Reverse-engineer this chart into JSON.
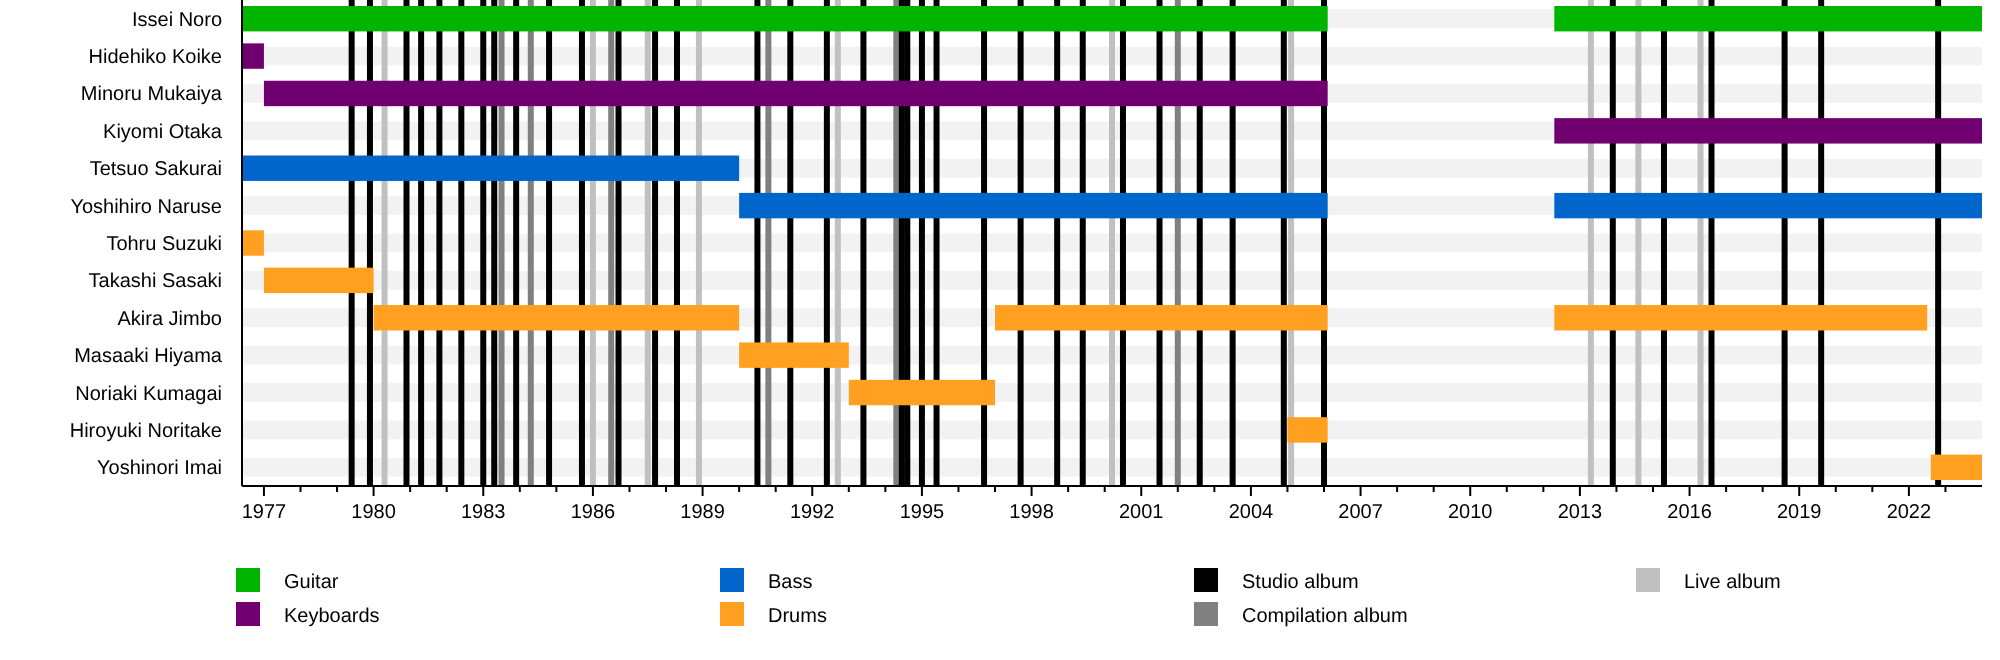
{
  "chart_data": {
    "type": "bar",
    "orientation": "horizontal",
    "legend": "bottom",
    "categories": [
      "Issei Noro",
      "Hidehiko Koike",
      "Minoru Mukaiya",
      "Kiyomi Otaka",
      "Tetsuo Sakurai",
      "Yoshihiro Naruse",
      "Tohru Suzuki",
      "Takashi Sasaki",
      "Akira Jimbo",
      "Masaaki Hiyama",
      "Noriaki Kumagai",
      "Hiroyuki Noritake",
      "Yoshinori Imai"
    ],
    "xlim": [
      1976.4,
      2024.0
    ],
    "xticks": [
      1977,
      {
        "value": 1978,
        "label": null
      },
      {
        "value": 1979,
        "label": null
      },
      1980,
      {
        "value": 1981,
        "label": null
      },
      {
        "value": 1982,
        "label": null
      },
      1983,
      {
        "value": 1984,
        "label": null
      },
      {
        "value": 1985,
        "label": null
      },
      1986,
      {
        "value": 1987,
        "label": null
      },
      {
        "value": 1988,
        "label": null
      },
      1989,
      {
        "value": 1990,
        "label": null
      },
      {
        "value": 1991,
        "label": null
      },
      1992,
      {
        "value": 1993,
        "label": null
      },
      {
        "value": 1994,
        "label": null
      },
      1995,
      {
        "value": 1996,
        "label": null
      },
      {
        "value": 1997,
        "label": null
      },
      1998,
      {
        "value": 1999,
        "label": null
      },
      {
        "value": 2000,
        "label": null
      },
      2001,
      {
        "value": 2002,
        "label": null
      },
      {
        "value": 2003,
        "label": null
      },
      2004,
      {
        "value": 2005,
        "label": null
      },
      {
        "value": 2006,
        "label": null
      },
      2007,
      {
        "value": 2008,
        "label": null
      },
      {
        "value": 2009,
        "label": null
      },
      2010,
      {
        "value": 2011,
        "label": null
      },
      {
        "value": 2012,
        "label": null
      },
      2013,
      {
        "value": 2014,
        "label": null
      },
      {
        "value": 2015,
        "label": null
      },
      2016,
      {
        "value": 2017,
        "label": null
      },
      {
        "value": 2018,
        "label": null
      },
      2019,
      {
        "value": 2020,
        "label": null
      },
      {
        "value": 2021,
        "label": null
      },
      2022,
      {
        "value": 2023,
        "label": null
      }
    ],
    "series": [
      {
        "name": "Guitar",
        "color": "#00b400",
        "base": [
          1976.4,
          null,
          null,
          null,
          null,
          null,
          null,
          null,
          null,
          null,
          null,
          null,
          null
        ],
        "values": [
          29.7,
          null,
          null,
          null,
          null,
          null,
          null,
          null,
          null,
          null,
          null,
          null,
          null
        ]
      },
      {
        "name": "Keyboards",
        "color": "#700070",
        "base": [
          null,
          1976.4,
          1977.0,
          2012.3,
          null,
          null,
          null,
          null,
          null,
          null,
          null,
          null,
          null
        ],
        "values": [
          null,
          0.6,
          29.1,
          11.7,
          null,
          null,
          null,
          null,
          null,
          null,
          null,
          null,
          null
        ]
      },
      {
        "name": "Bass",
        "color": "#0066cc",
        "base": [
          null,
          null,
          null,
          null,
          1976.4,
          1990.0,
          null,
          null,
          null,
          null,
          null,
          null,
          null
        ],
        "values": [
          null,
          null,
          null,
          null,
          13.6,
          16.1,
          null,
          null,
          null,
          null,
          null,
          null,
          null
        ]
      },
      {
        "name": "Drums",
        "color": "#ffa020",
        "base": [
          null,
          null,
          null,
          null,
          null,
          null,
          1976.4,
          1977.0,
          1980.0,
          1990.0,
          1993.0,
          2005.0,
          2022.6
        ],
        "values": [
          null,
          null,
          null,
          null,
          null,
          null,
          0.6,
          3.0,
          10.0,
          3.0,
          4.0,
          1.1,
          1.4
        ]
      },
      {
        "color": "#00b400",
        "base": [
          2012.3,
          null,
          null,
          null,
          null,
          null,
          null,
          null,
          null,
          null,
          null,
          null,
          null
        ],
        "values": [
          11.7,
          null,
          null,
          null,
          null,
          null,
          null,
          null,
          null,
          null,
          null,
          null,
          null
        ]
      },
      {
        "color": "#0066cc",
        "base": [
          null,
          null,
          null,
          null,
          null,
          2012.3,
          null,
          null,
          null,
          null,
          null,
          null,
          null
        ],
        "values": [
          null,
          null,
          null,
          null,
          null,
          11.7,
          null,
          null,
          null,
          null,
          null,
          null,
          null
        ]
      },
      {
        "color": "#ffa020",
        "base": [
          null,
          null,
          null,
          null,
          null,
          null,
          null,
          null,
          1997.0,
          null,
          null,
          null,
          null
        ],
        "values": [
          null,
          null,
          null,
          null,
          null,
          null,
          null,
          null,
          9.1,
          null,
          null,
          null,
          null
        ]
      },
      {
        "color": "#ffa020",
        "base": [
          null,
          null,
          null,
          null,
          null,
          null,
          null,
          null,
          2012.3,
          null,
          null,
          null,
          null
        ],
        "values": [
          null,
          null,
          null,
          null,
          null,
          null,
          null,
          null,
          10.2,
          null,
          null,
          null,
          null
        ]
      }
    ],
    "ref_lines": [
      {
        "axis": "x",
        "value": 1979.4,
        "label": "Studio album",
        "color": "#000000"
      },
      {
        "axis": "x",
        "value": 1983.5,
        "label": "Compilation album",
        "color": "#808080"
      },
      {
        "axis": "x",
        "value": 1980.3,
        "label": "Live album",
        "color": "#c0c0c0"
      },
      {
        "axis": "x",
        "value": 1979.9,
        "color": "#000000"
      },
      {
        "axis": "x",
        "value": 1980.9,
        "color": "#000000"
      },
      {
        "axis": "x",
        "value": 1981.3,
        "color": "#000000"
      },
      {
        "axis": "x",
        "value": 1981.8,
        "color": "#000000"
      },
      {
        "axis": "x",
        "value": 1982.4,
        "color": "#000000"
      },
      {
        "axis": "x",
        "value": 1983.0,
        "color": "#000000"
      },
      {
        "axis": "x",
        "value": 1983.3,
        "color": "#000000"
      },
      {
        "axis": "x",
        "value": 1983.9,
        "color": "#000000"
      },
      {
        "axis": "x",
        "value": 1984.3,
        "color": "#808080"
      },
      {
        "axis": "x",
        "value": 1984.8,
        "color": "#000000"
      },
      {
        "axis": "x",
        "value": 1985.7,
        "color": "#000000"
      },
      {
        "axis": "x",
        "value": 1986.0,
        "color": "#c0c0c0"
      },
      {
        "axis": "x",
        "value": 1986.5,
        "color": "#808080"
      },
      {
        "axis": "x",
        "value": 1986.7,
        "color": "#000000"
      },
      {
        "axis": "x",
        "value": 1987.5,
        "color": "#c0c0c0"
      },
      {
        "axis": "x",
        "value": 1987.7,
        "color": "#000000"
      },
      {
        "axis": "x",
        "value": 1988.3,
        "color": "#000000"
      },
      {
        "axis": "x",
        "value": 1988.9,
        "color": "#c0c0c0"
      },
      {
        "axis": "x",
        "value": 1990.5,
        "color": "#000000"
      },
      {
        "axis": "x",
        "value": 1990.8,
        "color": "#808080"
      },
      {
        "axis": "x",
        "value": 1991.4,
        "color": "#000000"
      },
      {
        "axis": "x",
        "value": 1992.4,
        "color": "#000000"
      },
      {
        "axis": "x",
        "value": 1992.7,
        "color": "#c0c0c0"
      },
      {
        "axis": "x",
        "value": 1993.4,
        "color": "#000000"
      },
      {
        "axis": "x",
        "value": 1994.3,
        "color": "#808080"
      },
      {
        "axis": "x",
        "value": 1994.45,
        "color": "#000000"
      },
      {
        "axis": "x",
        "value": 1994.6,
        "color": "#000000"
      },
      {
        "axis": "x",
        "value": 1995.0,
        "color": "#000000"
      },
      {
        "axis": "x",
        "value": 1995.4,
        "color": "#000000"
      },
      {
        "axis": "x",
        "value": 1996.7,
        "color": "#000000"
      },
      {
        "axis": "x",
        "value": 1997.7,
        "color": "#000000"
      },
      {
        "axis": "x",
        "value": 1998.7,
        "color": "#000000"
      },
      {
        "axis": "x",
        "value": 1999.4,
        "color": "#000000"
      },
      {
        "axis": "x",
        "value": 2000.2,
        "color": "#c0c0c0"
      },
      {
        "axis": "x",
        "value": 2000.5,
        "color": "#000000"
      },
      {
        "axis": "x",
        "value": 2001.5,
        "color": "#000000"
      },
      {
        "axis": "x",
        "value": 2002.0,
        "color": "#808080"
      },
      {
        "axis": "x",
        "value": 2002.6,
        "color": "#000000"
      },
      {
        "axis": "x",
        "value": 2003.5,
        "color": "#000000"
      },
      {
        "axis": "x",
        "value": 2004.9,
        "color": "#000000"
      },
      {
        "axis": "x",
        "value": 2005.1,
        "color": "#c0c0c0"
      },
      {
        "axis": "x",
        "value": 2006.0,
        "color": "#000000"
      },
      {
        "axis": "x",
        "value": 2013.3,
        "color": "#c0c0c0"
      },
      {
        "axis": "x",
        "value": 2013.9,
        "color": "#000000"
      },
      {
        "axis": "x",
        "value": 2014.6,
        "color": "#c0c0c0"
      },
      {
        "axis": "x",
        "value": 2015.3,
        "color": "#000000"
      },
      {
        "axis": "x",
        "value": 2016.3,
        "color": "#c0c0c0"
      },
      {
        "axis": "x",
        "value": 2016.6,
        "color": "#000000"
      },
      {
        "axis": "x",
        "value": 2018.6,
        "color": "#000000"
      },
      {
        "axis": "x",
        "value": 2019.6,
        "color": "#000000"
      },
      {
        "axis": "x",
        "value": 2022.8,
        "color": "#000000"
      }
    ]
  }
}
